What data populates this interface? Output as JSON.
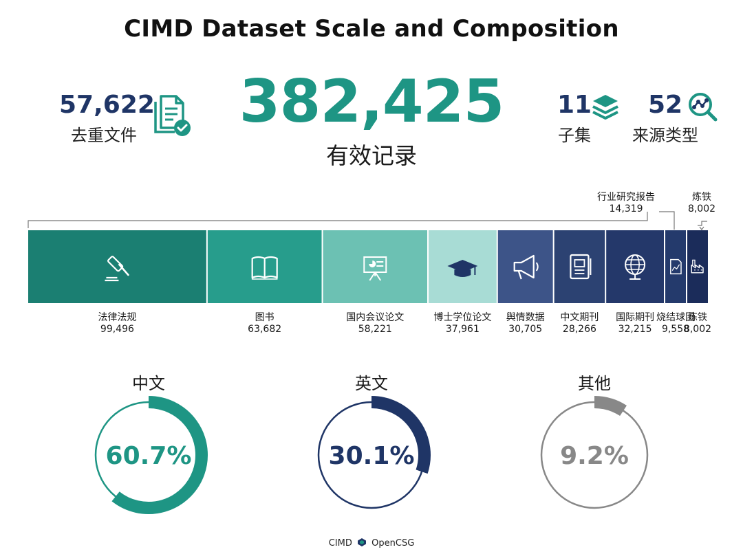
{
  "title": "CIMD Dataset Scale and Composition",
  "stats": {
    "dedup_files": {
      "value": "57,622",
      "label": "去重文件",
      "icon": "document-check-icon"
    },
    "valid_records": {
      "value": "382,425",
      "label": "有效记录"
    },
    "subsets": {
      "value": "11",
      "label": "子集",
      "icon": "layers-icon"
    },
    "source_types": {
      "value": "52",
      "label": "来源类型",
      "icon": "network-search-icon"
    }
  },
  "chart_data": [
    {
      "type": "bar",
      "orientation": "stacked-horizontal",
      "categories": [
        "法律法规",
        "图书",
        "国内会议论文",
        "博士学位论文",
        "舆情数据",
        "中文期刊",
        "国际期刊",
        "烧结球团",
        "炼铁",
        "行业研究报告",
        "炼铁"
      ],
      "values": [
        99496,
        63682,
        58221,
        37961,
        30705,
        28266,
        32215,
        9558,
        8002,
        14319,
        8002
      ],
      "value_labels": [
        "99,496",
        "63,682",
        "58,221",
        "37,961",
        "30,705",
        "28,266",
        "32,215",
        "9,558",
        "8,002",
        "14,319",
        "8,002"
      ],
      "colors": [
        "#1b7f72",
        "#279d8c",
        "#6cc1b3",
        "#a8dcd5",
        "#3d5488",
        "#2c4272",
        "#24386a",
        "#243a6c",
        "#1b2c5a",
        "#1f3566",
        "#1f3566"
      ],
      "icons": [
        "gavel-icon",
        "book-icon",
        "presentation-icon",
        "graduation-cap-icon",
        "megaphone-icon",
        "notebook-icon",
        "globe-icon",
        "report-icon",
        "factory-icon",
        "",
        "flask-icon"
      ]
    },
    {
      "type": "pie",
      "style": "donut",
      "categories": [
        "中文",
        "英文",
        "其他"
      ],
      "values": [
        60.7,
        30.1,
        9.2
      ],
      "value_labels": [
        "60.7%",
        "30.1%",
        "9.2%"
      ],
      "colors": [
        "#1e9584",
        "#1f3566",
        "#888888"
      ]
    }
  ],
  "callouts": {
    "industry_report": {
      "label": "行业研究报告",
      "value": "14,319"
    },
    "ironmaking": {
      "label": "炼铁",
      "value": "8,002"
    }
  },
  "footer": {
    "left": "CIMD",
    "right": "OpenCSG"
  }
}
